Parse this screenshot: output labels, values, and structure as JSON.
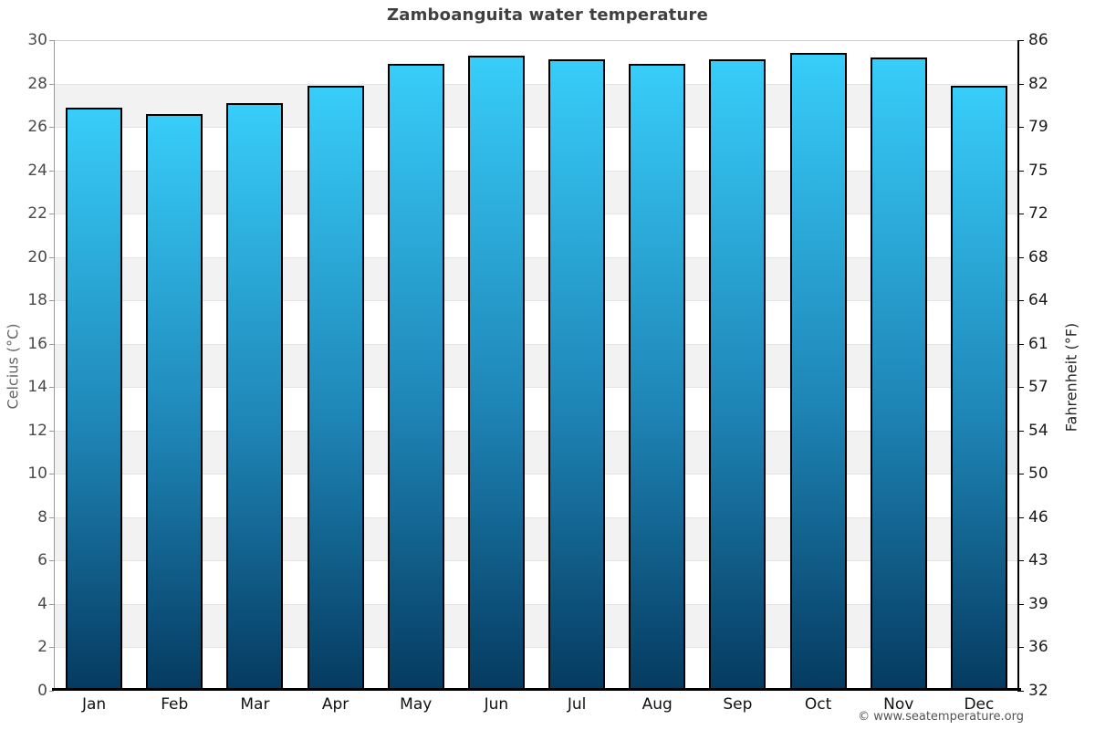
{
  "header": {
    "title": "Zamboanguita water temperature"
  },
  "footer": {
    "credit": "© www.seatemperature.org"
  },
  "colors": {
    "bar_gradient_top": "#38cdf9",
    "bar_gradient_mid": "#1e85b6",
    "bar_gradient_bottom": "#053a60",
    "bar_border": "#000000",
    "band_gray": "#f2f2f2",
    "band_white": "#ffffff",
    "gridline": "#e4e4e4",
    "title_text": "#404040",
    "left_axis_line": "#9a9a9a",
    "right_axis_line": "#000000",
    "bottom_axis_line": "#000000"
  },
  "chart_data": {
    "type": "bar",
    "title": "Zamboanguita water temperature",
    "categories": [
      "Jan",
      "Feb",
      "Mar",
      "Apr",
      "May",
      "Jun",
      "Jul",
      "Aug",
      "Sep",
      "Oct",
      "Nov",
      "Dec"
    ],
    "values": [
      26.9,
      26.6,
      27.1,
      27.9,
      28.9,
      29.3,
      29.1,
      28.9,
      29.1,
      29.4,
      29.2,
      27.9
    ],
    "units": "°C",
    "ylabel_left": "Celcius (°C)",
    "ylabel_right": "Fahrenheit (°F)",
    "ylim": [
      0,
      30
    ],
    "ytick_step": 2,
    "yticks_celsius": [
      0,
      2,
      4,
      6,
      8,
      10,
      12,
      14,
      16,
      18,
      20,
      22,
      24,
      26,
      28,
      30
    ],
    "yticks_fahrenheit_labels": [
      "32",
      "36",
      "39",
      "43",
      "46",
      "50",
      "54",
      "57",
      "61",
      "64",
      "68",
      "72",
      "75",
      "79",
      "82",
      "86"
    ],
    "xlabel": "",
    "legend": "none",
    "grid": "alternating-horizontal-bands-every-2C",
    "bar_color_style": "vertical gradient cyan to dark navy with black outline"
  }
}
